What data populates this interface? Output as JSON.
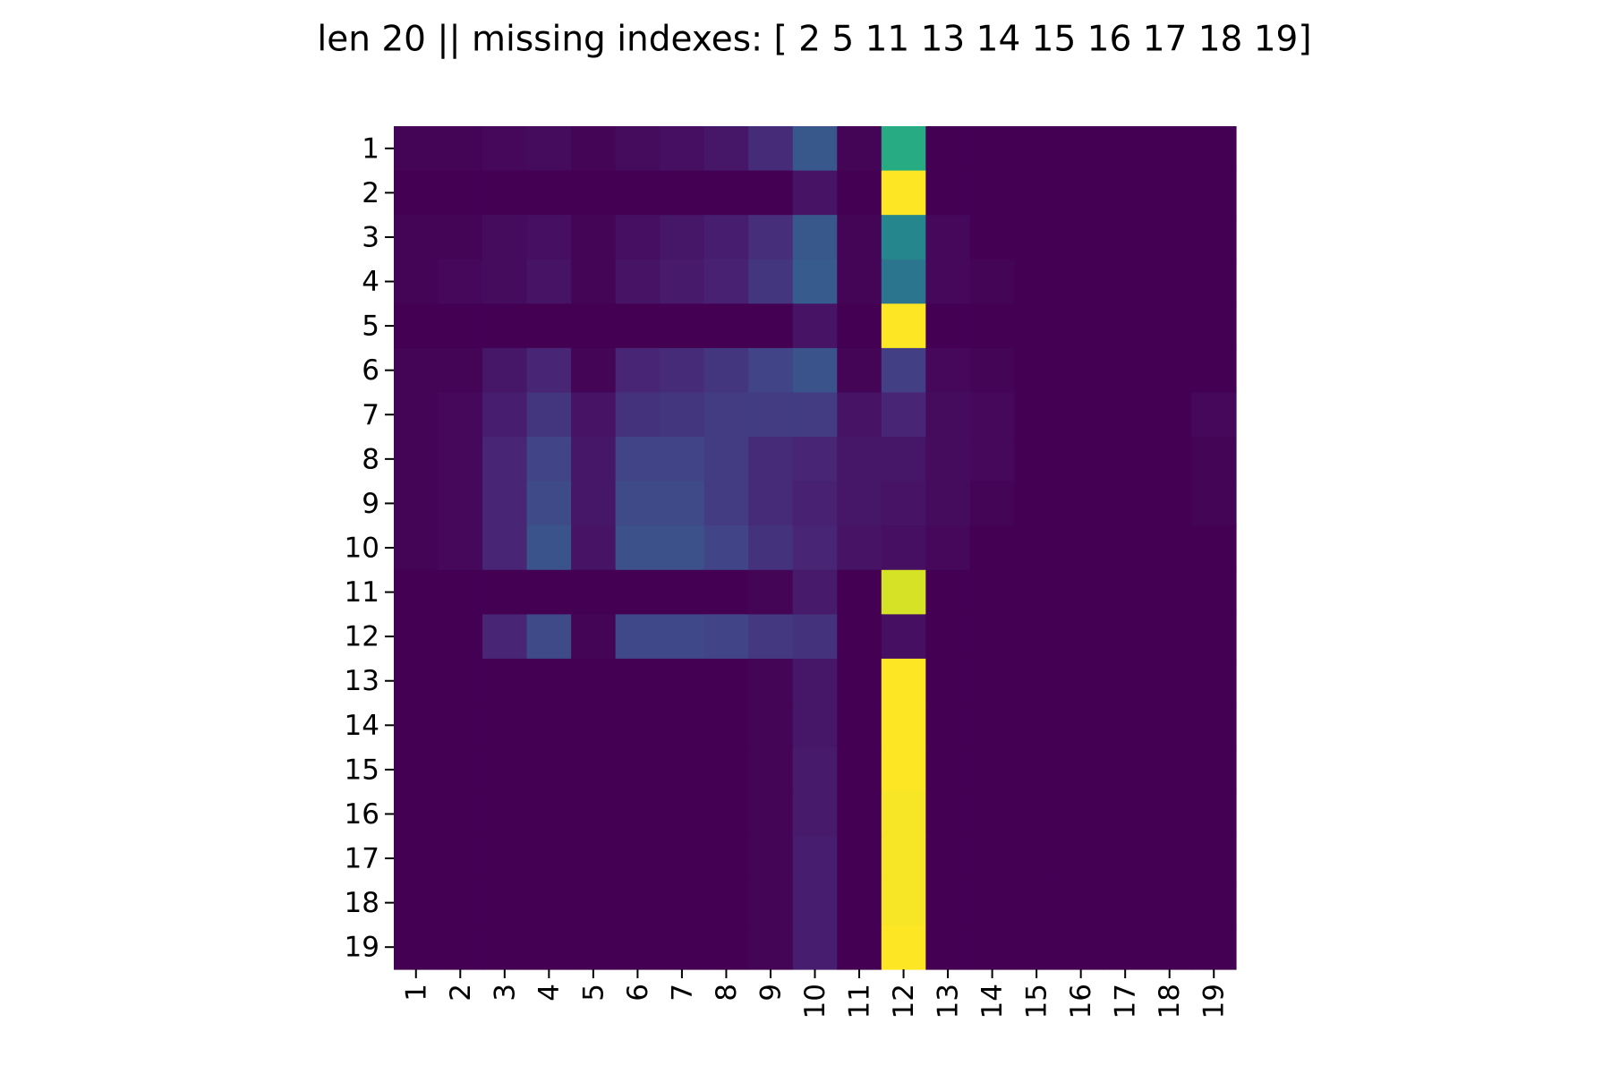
{
  "chart_data": {
    "type": "heatmap",
    "title": "len 20 ||  missing indexes: [ 2  5 11 13 14 15 16 17 18 19]",
    "colormap": "viridis",
    "categories": [
      "1",
      "2",
      "3",
      "4",
      "5",
      "6",
      "7",
      "8",
      "9",
      "10",
      "11",
      "12",
      "13",
      "14",
      "15",
      "16",
      "17",
      "18",
      "19"
    ],
    "y_categories": [
      "1",
      "2",
      "3",
      "4",
      "5",
      "6",
      "7",
      "8",
      "9",
      "10",
      "11",
      "12",
      "13",
      "14",
      "15",
      "16",
      "17",
      "18",
      "19"
    ],
    "values": [
      [
        0.01,
        0.01,
        0.02,
        0.03,
        0.01,
        0.03,
        0.04,
        0.06,
        0.12,
        0.27,
        0.01,
        0.6,
        0,
        0,
        0,
        0,
        0,
        0,
        0
      ],
      [
        0,
        0,
        0,
        0,
        0,
        0,
        0,
        0,
        0,
        0.05,
        0,
        0.98,
        0,
        0,
        0,
        0,
        0,
        0,
        0
      ],
      [
        0.01,
        0.01,
        0.03,
        0.04,
        0.01,
        0.04,
        0.06,
        0.08,
        0.13,
        0.27,
        0.01,
        0.45,
        0.02,
        0,
        0,
        0,
        0,
        0,
        0
      ],
      [
        0.01,
        0.02,
        0.03,
        0.05,
        0.01,
        0.05,
        0.07,
        0.09,
        0.15,
        0.28,
        0.01,
        0.38,
        0.02,
        0.01,
        0,
        0,
        0,
        0,
        0
      ],
      [
        0,
        0,
        0,
        0,
        0,
        0,
        0,
        0,
        0,
        0.05,
        0,
        0.98,
        0,
        0,
        0,
        0,
        0,
        0,
        0
      ],
      [
        0.01,
        0.01,
        0.06,
        0.1,
        0.01,
        0.1,
        0.12,
        0.15,
        0.2,
        0.25,
        0.01,
        0.18,
        0.02,
        0.01,
        0,
        0,
        0,
        0,
        0
      ],
      [
        0.01,
        0.02,
        0.08,
        0.15,
        0.05,
        0.14,
        0.15,
        0.17,
        0.17,
        0.17,
        0.05,
        0.1,
        0.03,
        0.02,
        0,
        0,
        0,
        0,
        0.02
      ],
      [
        0.01,
        0.02,
        0.1,
        0.2,
        0.06,
        0.2,
        0.2,
        0.17,
        0.12,
        0.1,
        0.06,
        0.06,
        0.03,
        0.02,
        0,
        0,
        0,
        0,
        0.01
      ],
      [
        0.01,
        0.02,
        0.1,
        0.22,
        0.06,
        0.22,
        0.22,
        0.17,
        0.12,
        0.09,
        0.06,
        0.05,
        0.03,
        0.01,
        0,
        0,
        0,
        0,
        0.01
      ],
      [
        0.01,
        0.02,
        0.1,
        0.25,
        0.05,
        0.24,
        0.24,
        0.2,
        0.14,
        0.1,
        0.05,
        0.04,
        0.02,
        0,
        0,
        0,
        0,
        0,
        0
      ],
      [
        0,
        0,
        0,
        0,
        0,
        0,
        0,
        0,
        0.01,
        0.07,
        0,
        0.92,
        0,
        0,
        0,
        0,
        0,
        0,
        0
      ],
      [
        0,
        0,
        0.1,
        0.22,
        0.01,
        0.21,
        0.21,
        0.2,
        0.16,
        0.14,
        0,
        0.04,
        0,
        0,
        0,
        0,
        0,
        0,
        0
      ],
      [
        0,
        0,
        0,
        0,
        0,
        0,
        0,
        0,
        0.01,
        0.06,
        0,
        0.98,
        0,
        0,
        0,
        0,
        0,
        0,
        0
      ],
      [
        0,
        0,
        0,
        0,
        0,
        0,
        0,
        0,
        0.01,
        0.06,
        0,
        0.98,
        0,
        0,
        0,
        0,
        0,
        0,
        0
      ],
      [
        0,
        0,
        0,
        0,
        0,
        0,
        0,
        0,
        0.01,
        0.07,
        0,
        0.98,
        0,
        0,
        0,
        0,
        0,
        0,
        0
      ],
      [
        0,
        0,
        0,
        0,
        0,
        0,
        0,
        0,
        0.01,
        0.07,
        0,
        0.97,
        0,
        0,
        0,
        0,
        0,
        0,
        0
      ],
      [
        0,
        0,
        0,
        0,
        0,
        0,
        0,
        0,
        0.01,
        0.08,
        0,
        0.97,
        0,
        0,
        0,
        0,
        0,
        0,
        0
      ],
      [
        0,
        0,
        0,
        0,
        0,
        0,
        0,
        0,
        0.01,
        0.08,
        0,
        0.97,
        0,
        0,
        0,
        0,
        0,
        0,
        0
      ],
      [
        0,
        0,
        0,
        0,
        0,
        0,
        0,
        0,
        0.01,
        0.08,
        0,
        0.98,
        0,
        0,
        0,
        0,
        0,
        0,
        0
      ]
    ]
  }
}
